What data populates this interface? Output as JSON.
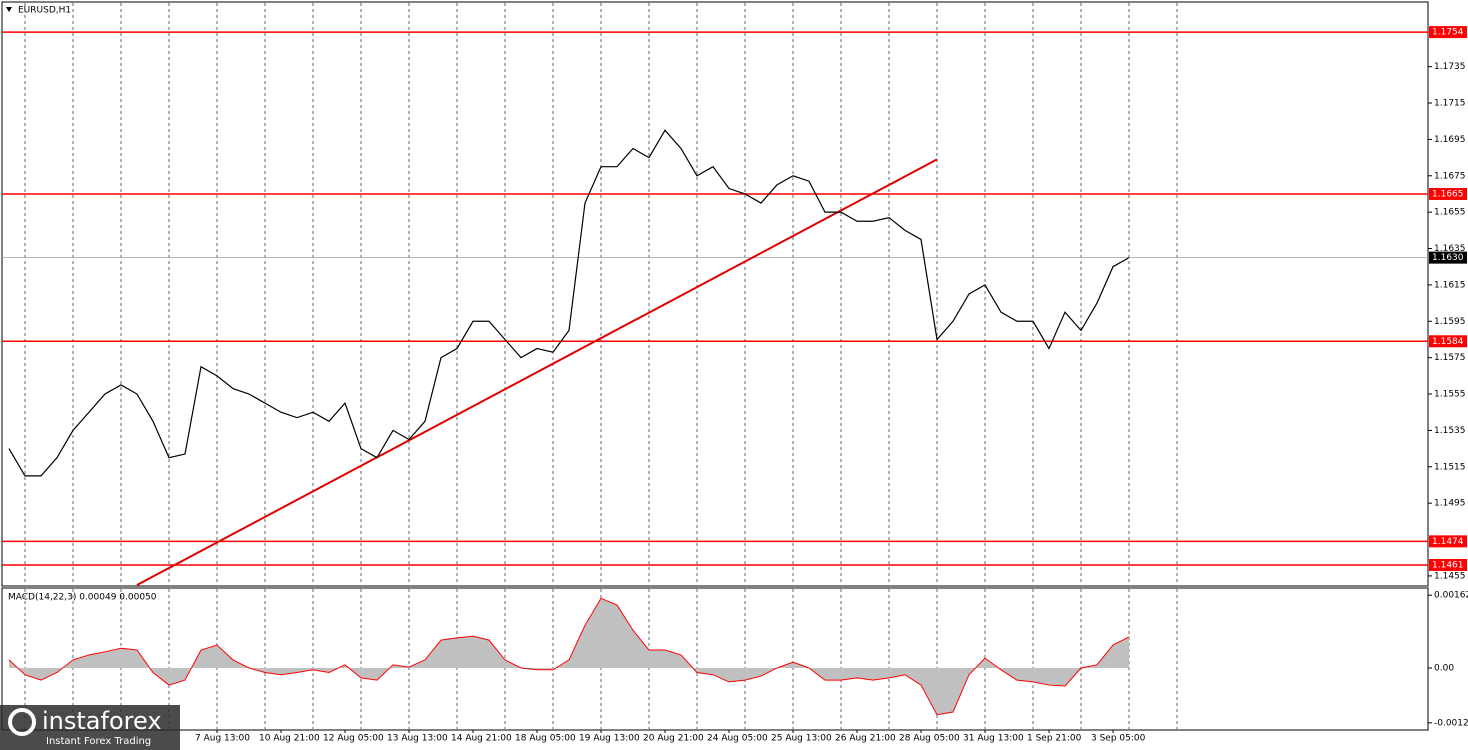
{
  "chart_data": [
    {
      "type": "line",
      "title": "EURUSD,H1",
      "categories": [
        null,
        null,
        null,
        null,
        null,
        null,
        null,
        null,
        null,
        null,
        null,
        null,
        null,
        "7 Aug 13:00",
        null,
        null,
        null,
        "10 Aug 21:00",
        null,
        null,
        null,
        "12 Aug 05:00",
        null,
        null,
        null,
        "13 Aug 13:00",
        null,
        null,
        null,
        "14 Aug 21:00",
        null,
        null,
        null,
        "18 Aug 05:00",
        null,
        null,
        null,
        "19 Aug 13:00",
        null,
        null,
        null,
        "20 Aug 21:00",
        null,
        null,
        null,
        "24 Aug 05:00",
        null,
        null,
        null,
        "25 Aug 13:00",
        null,
        null,
        null,
        "26 Aug 21:00",
        null,
        null,
        null,
        "28 Aug 05:00",
        null,
        null,
        null,
        "31 Aug 13:00",
        null,
        null,
        null,
        "1 Sep 21:00",
        null,
        null,
        null,
        "3 Sep 05:00",
        null
      ],
      "values": [
        1.1525,
        1.151,
        1.151,
        1.152,
        1.1535,
        1.1545,
        1.1555,
        1.156,
        1.1555,
        1.154,
        1.152,
        1.1522,
        1.157,
        1.1565,
        1.1558,
        1.1555,
        1.155,
        1.1545,
        1.1542,
        1.1545,
        1.154,
        1.155,
        1.1525,
        1.152,
        1.1535,
        1.153,
        1.154,
        1.1575,
        1.158,
        1.1595,
        1.1595,
        1.1585,
        1.1575,
        1.158,
        1.1578,
        1.159,
        1.166,
        1.168,
        1.168,
        1.169,
        1.1685,
        1.17,
        1.169,
        1.1675,
        1.168,
        1.1668,
        1.1665,
        1.166,
        1.167,
        1.1675,
        1.1672,
        1.1655,
        1.1655,
        1.165,
        1.165,
        1.1652,
        1.1645,
        1.164,
        1.1585,
        1.1595,
        1.161,
        1.1615,
        1.16,
        1.1595,
        1.1595,
        1.158,
        1.16,
        1.159,
        1.1605,
        1.1625,
        1.163
      ],
      "color": "#000000",
      "ylim": [
        1.145,
        1.177
      ],
      "yticks": [
        1.1735,
        1.1715,
        1.1695,
        1.1675,
        1.1655,
        1.1635,
        1.1615,
        1.1595,
        1.1575,
        1.1555,
        1.1535,
        1.1515,
        1.1495,
        1.1455
      ],
      "levels": [
        1.1754,
        1.1665,
        1.1584,
        1.1474,
        1.1461
      ],
      "level_color": "#ff0000",
      "current": {
        "value": 1.163,
        "label": "1.1630"
      },
      "trendline": {
        "x": [
          8,
          58
        ],
        "values": [
          1.145,
          1.1684
        ],
        "color": "#e00000"
      },
      "grid": true
    },
    {
      "type": "area",
      "title": "MACD(14,22,3) 0.00049 0.00050",
      "values": [
        0.00018,
        -0.00015,
        -0.00027,
        -0.0001,
        0.00018,
        0.00029,
        0.00036,
        0.00044,
        0.0004,
        -0.0001,
        -0.00038,
        -0.00027,
        0.0004,
        0.00051,
        0.00018,
        0,
        -0.0001,
        -0.00015,
        -0.0001,
        -4e-05,
        -0.0001,
        7e-05,
        -0.00022,
        -0.00027,
        7e-05,
        2e-05,
        0.00018,
        0.00062,
        0.00067,
        0.00071,
        0.00062,
        0.00018,
        0,
        -4e-05,
        -4e-05,
        0.00018,
        0.00095,
        0.00155,
        0.0014,
        0.00084,
        0.0004,
        0.0004,
        0.00029,
        -0.0001,
        -0.00015,
        -0.00031,
        -0.00027,
        -0.00018,
        0,
        0.00013,
        0,
        -0.00027,
        -0.00027,
        -0.00022,
        -0.00027,
        -0.00022,
        -0.00015,
        -0.00038,
        -0.00104,
        -0.00098,
        -0.00015,
        0.00022,
        -4e-05,
        -0.00027,
        -0.00031,
        -0.00038,
        -0.0004,
        0,
        7e-05,
        0.00051,
        0.00069
      ],
      "color": "#c0c0c0",
      "line_color": "#ff0000",
      "ylim": [
        -0.00138,
        0.00178
      ],
      "yticks": [
        0.00162,
        {
          "value": 0,
          "label": "0.00"
        },
        -0.00122
      ]
    }
  ],
  "logo": {
    "name": "instaforex",
    "tagline": "Instant Forex Trading"
  }
}
